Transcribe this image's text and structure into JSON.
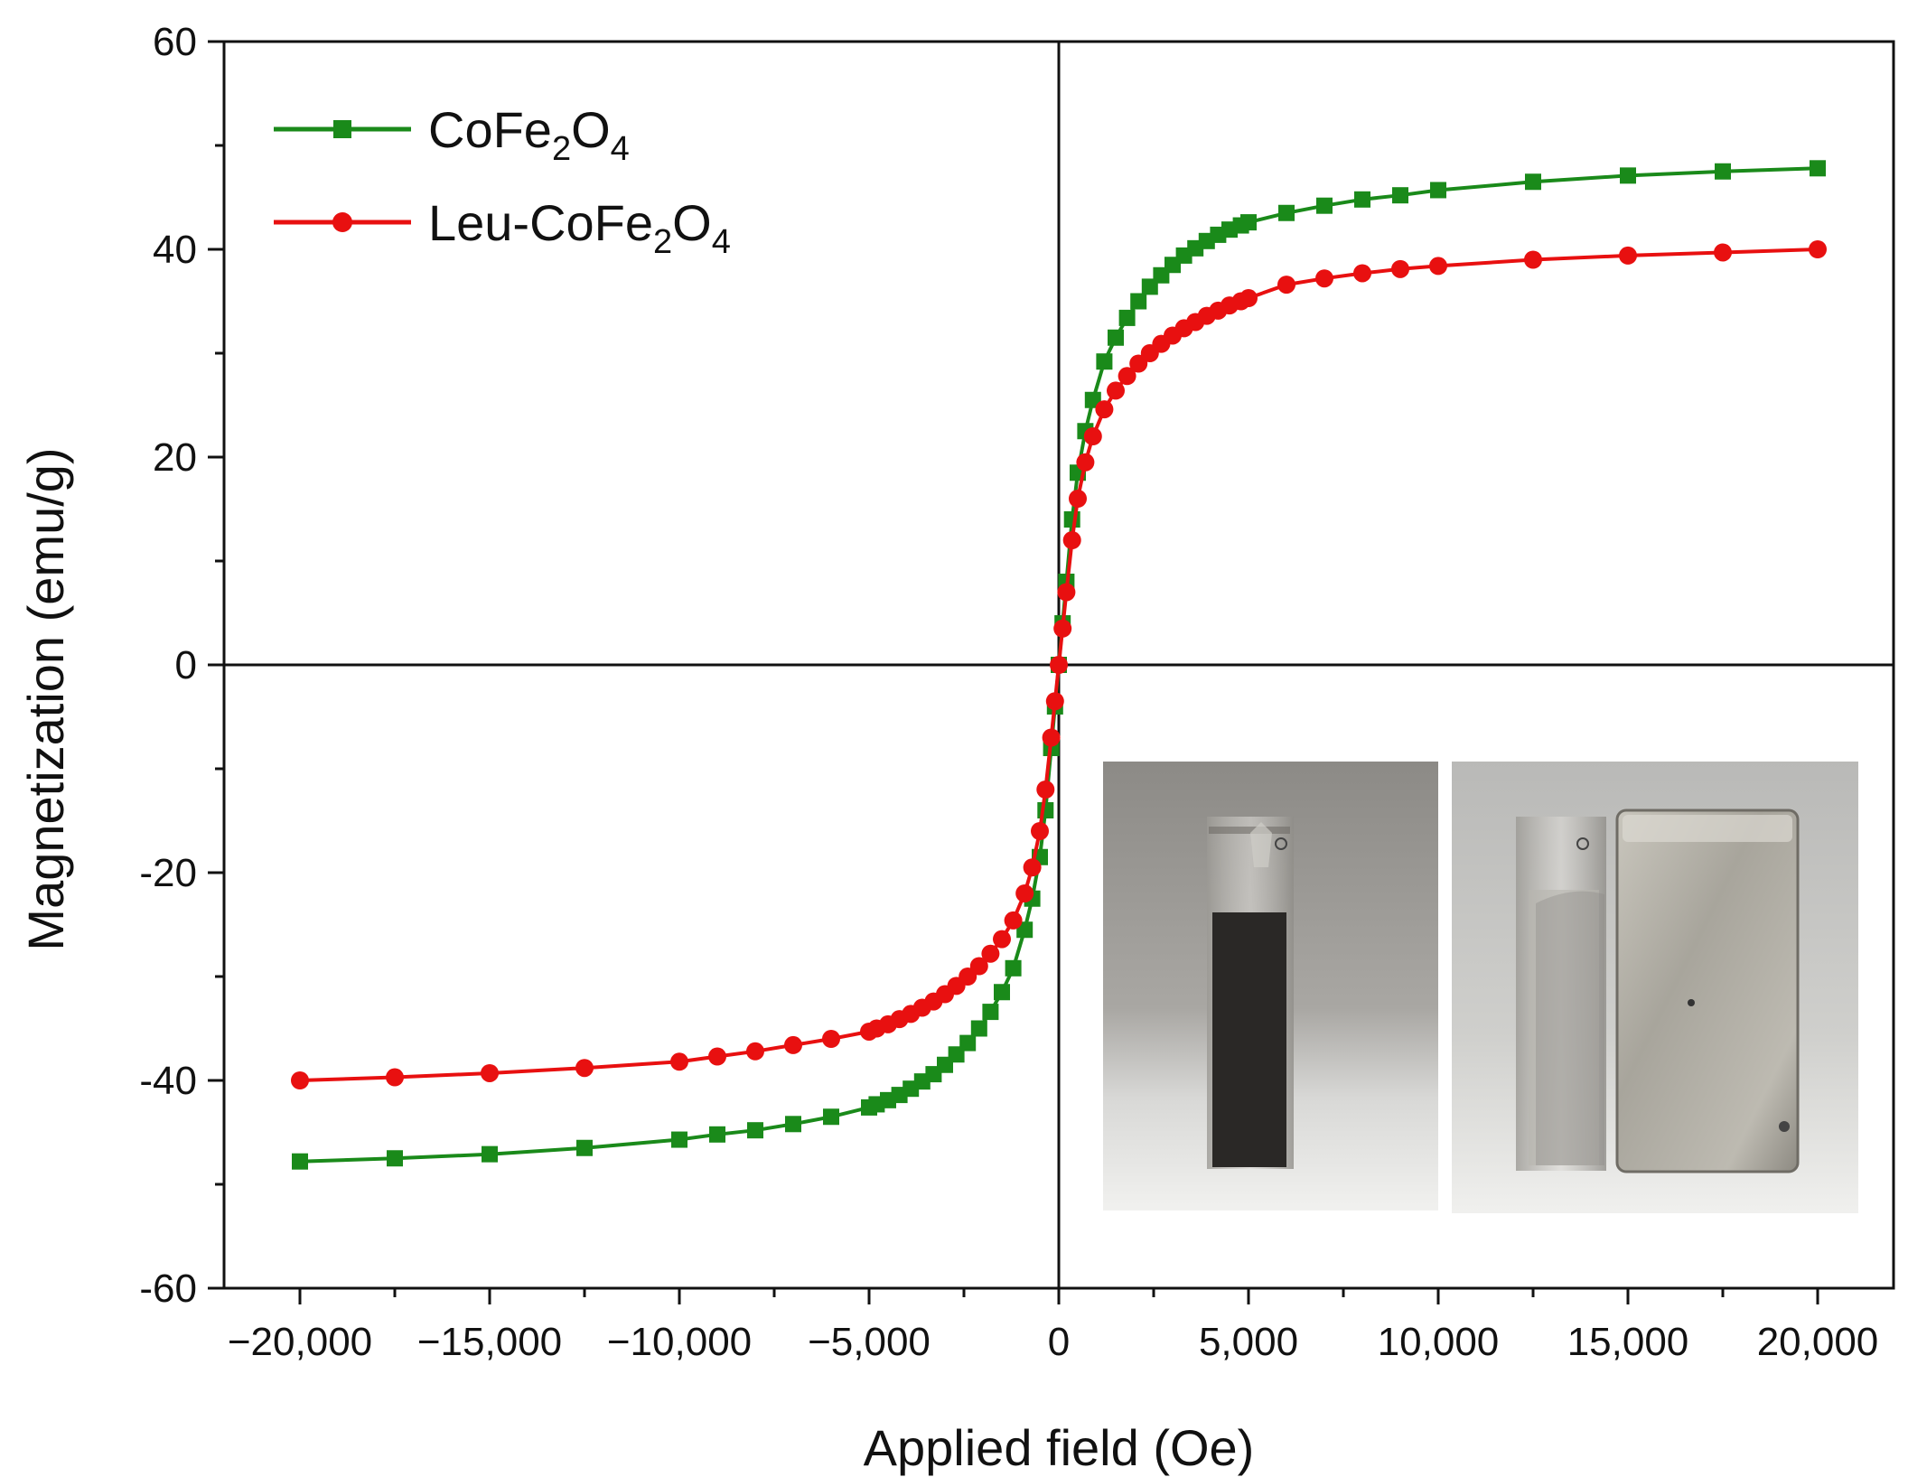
{
  "chart_data": {
    "type": "line",
    "xlabel": "Applied field (Oe)",
    "ylabel": "Magnetization (emu/g)",
    "xlim": [
      -22000,
      22000
    ],
    "ylim": [
      -60,
      60
    ],
    "xticks": [
      -20000,
      -15000,
      -10000,
      -5000,
      0,
      5000,
      10000,
      15000,
      20000
    ],
    "xtick_labels": [
      "−20,000",
      "−15,000",
      "−10,000",
      "−5,000",
      "0",
      "5,000",
      "10,000",
      "15,000",
      "20,000"
    ],
    "yticks": [
      -60,
      -40,
      -20,
      0,
      20,
      40,
      60
    ],
    "ytick_labels": [
      "-60",
      "-40",
      "-20",
      "0",
      "20",
      "40",
      "60"
    ],
    "legend_position": "top-left",
    "series": [
      {
        "name": "CoFe2O4",
        "legend": {
          "base": "CoFe",
          "sub1": "2",
          "mid": "O",
          "sub2": "4"
        },
        "color": "#1a8a1a",
        "marker": "square",
        "x": [
          -20000,
          -17500,
          -15000,
          -12500,
          -10000,
          -9000,
          -8000,
          -7000,
          -6000,
          -5000,
          -4800,
          -4500,
          -4200,
          -3900,
          -3600,
          -3300,
          -3000,
          -2700,
          -2400,
          -2100,
          -1800,
          -1500,
          -1200,
          -900,
          -700,
          -500,
          -350,
          -200,
          -100,
          0,
          100,
          200,
          350,
          500,
          700,
          900,
          1200,
          1500,
          1800,
          2100,
          2400,
          2700,
          3000,
          3300,
          3600,
          3900,
          4200,
          4500,
          4800,
          5000,
          6000,
          7000,
          8000,
          9000,
          10000,
          12500,
          15000,
          17500,
          20000
        ],
        "y": [
          -47.8,
          -47.5,
          -47.1,
          -46.5,
          -45.7,
          -45.2,
          -44.8,
          -44.2,
          -43.5,
          -42.6,
          -42.3,
          -41.9,
          -41.4,
          -40.8,
          -40.1,
          -39.4,
          -38.5,
          -37.5,
          -36.4,
          -35.0,
          -33.4,
          -31.5,
          -29.2,
          -25.5,
          -22.5,
          -18.5,
          -14.0,
          -8.0,
          -4.0,
          0,
          4.0,
          8.0,
          14.0,
          18.5,
          22.5,
          25.5,
          29.2,
          31.5,
          33.4,
          35.0,
          36.4,
          37.5,
          38.5,
          39.4,
          40.1,
          40.8,
          41.4,
          41.9,
          42.3,
          42.6,
          43.5,
          44.2,
          44.8,
          45.2,
          45.7,
          46.5,
          47.1,
          47.5,
          47.8
        ]
      },
      {
        "name": "Leu-CoFe2O4",
        "legend": {
          "base": "Leu-CoFe",
          "sub1": "2",
          "mid": "O",
          "sub2": "4"
        },
        "color": "#e81010",
        "marker": "circle",
        "x": [
          -20000,
          -17500,
          -15000,
          -12500,
          -10000,
          -9000,
          -8000,
          -7000,
          -6000,
          -5000,
          -4800,
          -4500,
          -4200,
          -3900,
          -3600,
          -3300,
          -3000,
          -2700,
          -2400,
          -2100,
          -1800,
          -1500,
          -1200,
          -900,
          -700,
          -500,
          -350,
          -200,
          -100,
          0,
          100,
          200,
          350,
          500,
          700,
          900,
          1200,
          1500,
          1800,
          2100,
          2400,
          2700,
          3000,
          3300,
          3600,
          3900,
          4200,
          4500,
          4800,
          5000,
          6000,
          7000,
          8000,
          9000,
          10000,
          12500,
          15000,
          17500,
          20000
        ],
        "y": [
          -40.0,
          -39.7,
          -39.3,
          -38.8,
          -38.2,
          -37.7,
          -37.2,
          -36.6,
          -36.0,
          -35.3,
          -35.0,
          -34.6,
          -34.1,
          -33.6,
          -33.0,
          -32.4,
          -31.7,
          -30.9,
          -30.0,
          -29.0,
          -27.8,
          -26.4,
          -24.6,
          -22.0,
          -19.5,
          -16.0,
          -12.0,
          -7.0,
          -3.5,
          0,
          3.5,
          7.0,
          12.0,
          16.0,
          19.5,
          22.0,
          24.6,
          26.4,
          27.8,
          29.0,
          30.0,
          30.9,
          31.7,
          32.4,
          33.0,
          33.6,
          34.1,
          34.6,
          35.0,
          35.3,
          36.6,
          37.2,
          37.7,
          38.1,
          38.4,
          39.0,
          39.4,
          39.7,
          40.0
        ]
      }
    ],
    "inset": {
      "panels": [
        {
          "description_name": "cuvette-dispersed-photo"
        },
        {
          "description_name": "cuvette-with-magnet-photo"
        }
      ]
    }
  }
}
